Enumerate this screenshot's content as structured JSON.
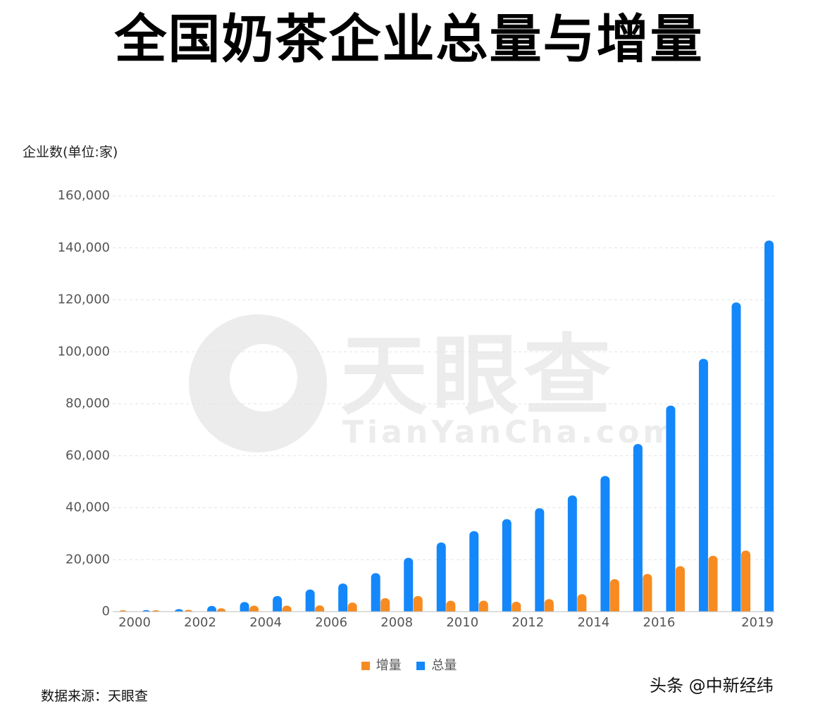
{
  "title": "全国奶茶企业总量与增量",
  "watermark": {
    "cn": "天眼查",
    "en": "TianYanCha.com"
  },
  "source": "数据来源：天眼查",
  "credit": "头条 @中新经纬",
  "colors": {
    "increment": "#f78b21",
    "total": "#1487fa",
    "grid": "#e3e3e3",
    "axis": "#bdbdbd",
    "tick_text": "#555555"
  },
  "chart_data": {
    "type": "bar",
    "ylabel": "企业数(单位:家)",
    "ylim": [
      0,
      160000
    ],
    "yticks": [
      0,
      20000,
      40000,
      60000,
      80000,
      100000,
      120000,
      140000,
      160000
    ],
    "ytick_labels": [
      "0",
      "20,000",
      "40,000",
      "60,000",
      "80,000",
      "100,000",
      "120,000",
      "140,000",
      "160,000"
    ],
    "categories": [
      "2000",
      "2001",
      "2002",
      "2003",
      "2004",
      "2005",
      "2006",
      "2007",
      "2008",
      "2009",
      "2010",
      "2011",
      "2012",
      "2013",
      "2014",
      "2015",
      "2016",
      "2017",
      "2018",
      "2019"
    ],
    "xtick_labels": [
      "2000",
      "",
      "2002",
      "",
      "2004",
      "",
      "2006",
      "",
      "2008",
      "",
      "2010",
      "",
      "2012",
      "",
      "2014",
      "",
      "2016",
      "",
      "",
      "2019"
    ],
    "grid": true,
    "legend": "bottom",
    "series": [
      {
        "name": "增量",
        "color": "#f78b21",
        "values": [
          300,
          400,
          700,
          1300,
          2300,
          2300,
          2400,
          3500,
          5200,
          6000,
          4200,
          4200,
          3800,
          4800,
          6700,
          12500,
          14500,
          17500,
          21500,
          23500
        ]
      },
      {
        "name": "总量",
        "color": "#1487fa",
        "values": [
          600,
          1000,
          2200,
          3700,
          6000,
          8500,
          10800,
          14800,
          20700,
          26600,
          31000,
          35600,
          39800,
          44700,
          52200,
          64500,
          79300,
          97300,
          119000,
          142800
        ]
      }
    ]
  }
}
